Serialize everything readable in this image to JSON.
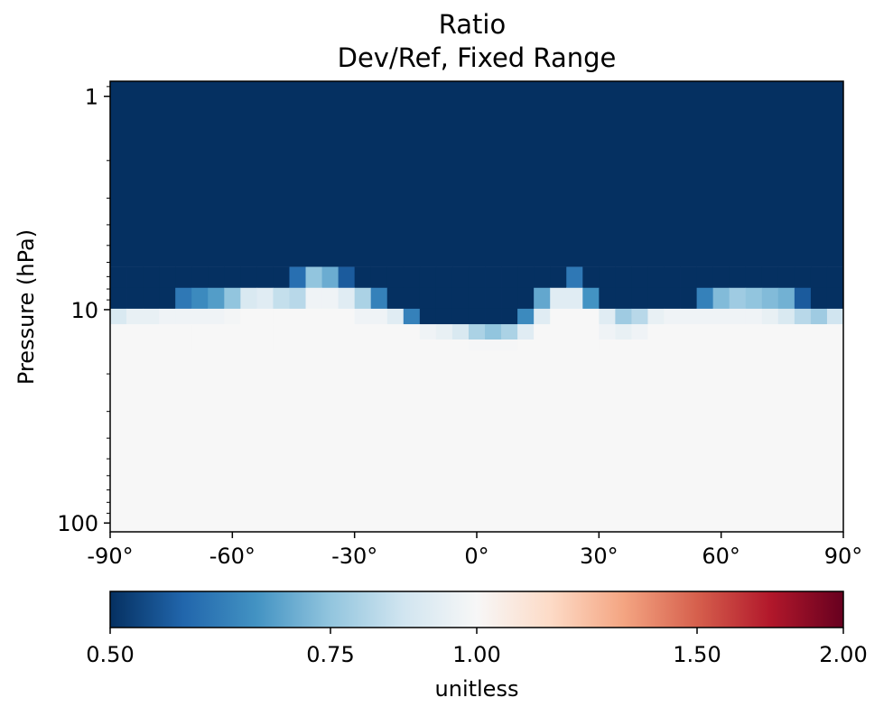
{
  "chart_data": {
    "type": "heatmap",
    "title": "Ratio",
    "subtitle": "Dev/Ref, Fixed Range",
    "ylabel": "Pressure (hPa)",
    "xlabel": "",
    "x_scale": "linear",
    "y_scale": "log",
    "y_inverted": true,
    "xlim": [
      -90,
      90
    ],
    "ylim": [
      0.85,
      110
    ],
    "x_ticks": [
      -90,
      -60,
      -30,
      0,
      30,
      60,
      90
    ],
    "x_tick_labels": [
      "-90°",
      "-60°",
      "-30°",
      "0°",
      "30°",
      "60°",
      "90°"
    ],
    "y_ticks": [
      1,
      10,
      100
    ],
    "y_tick_labels": [
      "1",
      "10",
      "100"
    ],
    "grid": false,
    "top_value": 0.5,
    "bottom_value": 1.0,
    "lat_bins": [
      -90,
      -86,
      -82,
      -78,
      -74,
      -70,
      -66,
      -62,
      -58,
      -54,
      -50,
      -46,
      -42,
      -38,
      -34,
      -30,
      -26,
      -22,
      -18,
      -14,
      -10,
      -6,
      -2,
      2,
      6,
      10,
      14,
      18,
      22,
      26,
      30,
      34,
      38,
      42,
      46,
      50,
      54,
      58,
      62,
      66,
      70,
      74,
      78,
      82,
      86,
      90
    ],
    "rows": [
      {
        "p_top": 6.3,
        "p_bottom": 7.9,
        "values": [
          0.5,
          0.5,
          0.5,
          0.5,
          0.5,
          0.5,
          0.5,
          0.5,
          0.5,
          0.5,
          0.5,
          0.62,
          0.8,
          0.75,
          0.58,
          0.5,
          0.5,
          0.5,
          0.5,
          0.5,
          0.5,
          0.5,
          0.5,
          0.5,
          0.5,
          0.5,
          0.5,
          0.5,
          0.64,
          0.5,
          0.5,
          0.5,
          0.5,
          0.5,
          0.5,
          0.5,
          0.5,
          0.5,
          0.5,
          0.5,
          0.5,
          0.5,
          0.5,
          0.5,
          0.5
        ]
      },
      {
        "p_top": 7.9,
        "p_bottom": 9.9,
        "values": [
          0.5,
          0.5,
          0.5,
          0.5,
          0.64,
          0.68,
          0.72,
          0.8,
          0.92,
          0.94,
          0.88,
          0.86,
          0.98,
          0.98,
          0.94,
          0.84,
          0.66,
          0.5,
          0.5,
          0.5,
          0.5,
          0.5,
          0.5,
          0.5,
          0.5,
          0.5,
          0.74,
          0.94,
          0.94,
          0.7,
          0.5,
          0.5,
          0.5,
          0.5,
          0.5,
          0.5,
          0.66,
          0.78,
          0.82,
          0.8,
          0.78,
          0.76,
          0.58,
          0.5,
          0.5
        ]
      },
      {
        "p_top": 9.9,
        "p_bottom": 11.7,
        "values": [
          0.92,
          0.96,
          0.96,
          0.98,
          0.98,
          0.98,
          0.98,
          0.99,
          1.0,
          1.0,
          1.0,
          1.0,
          1.0,
          1.0,
          1.0,
          0.98,
          0.98,
          0.94,
          0.66,
          0.5,
          0.5,
          0.5,
          0.5,
          0.5,
          0.5,
          0.68,
          0.94,
          1.0,
          1.0,
          1.0,
          0.94,
          0.82,
          0.86,
          0.96,
          0.98,
          0.98,
          0.98,
          0.98,
          0.98,
          0.98,
          0.96,
          0.92,
          0.86,
          0.82,
          0.9
        ]
      },
      {
        "p_top": 11.7,
        "p_bottom": 13.8,
        "values": [
          1.0,
          1.0,
          1.0,
          1.0,
          1.0,
          1.0,
          1.0,
          1.0,
          1.0,
          1.0,
          1.0,
          1.0,
          1.0,
          1.0,
          1.0,
          1.0,
          1.0,
          1.0,
          1.0,
          0.98,
          0.96,
          0.92,
          0.84,
          0.8,
          0.84,
          0.94,
          1.0,
          1.0,
          1.0,
          1.0,
          0.98,
          0.96,
          0.98,
          1.0,
          1.0,
          1.0,
          1.0,
          1.0,
          1.0,
          1.0,
          1.0,
          1.0,
          1.0,
          1.0,
          1.0
        ]
      },
      {
        "p_top": 13.8,
        "p_bottom": 15.5,
        "values": [
          1.0,
          1.0,
          1.0,
          1.0,
          1.0,
          1.0,
          1.0,
          1.0,
          1.0,
          1.0,
          1.0,
          1.0,
          1.0,
          1.0,
          1.0,
          1.0,
          1.0,
          1.0,
          1.0,
          1.0,
          1.0,
          1.0,
          0.995,
          0.995,
          0.995,
          1.0,
          1.0,
          1.0,
          1.0,
          1.0,
          1.0,
          1.0,
          1.0,
          1.0,
          1.0,
          1.0,
          1.0,
          1.0,
          1.0,
          1.0,
          1.0,
          1.0,
          1.0,
          1.0,
          1.0
        ]
      }
    ]
  },
  "colorbar": {
    "ticks": [
      {
        "value": 0.5,
        "label": "0.50"
      },
      {
        "value": 0.75,
        "label": "0.75"
      },
      {
        "value": 1.0,
        "label": "1.00"
      },
      {
        "value": 1.5,
        "label": "1.50"
      },
      {
        "value": 2.0,
        "label": "2.00"
      }
    ],
    "label": "unitless",
    "colors": [
      "#053061",
      "#2166ac",
      "#4393c3",
      "#92c5de",
      "#d1e5f0",
      "#f7f7f7",
      "#fddbc7",
      "#f4a582",
      "#d6604d",
      "#b2182b",
      "#67001f"
    ]
  }
}
